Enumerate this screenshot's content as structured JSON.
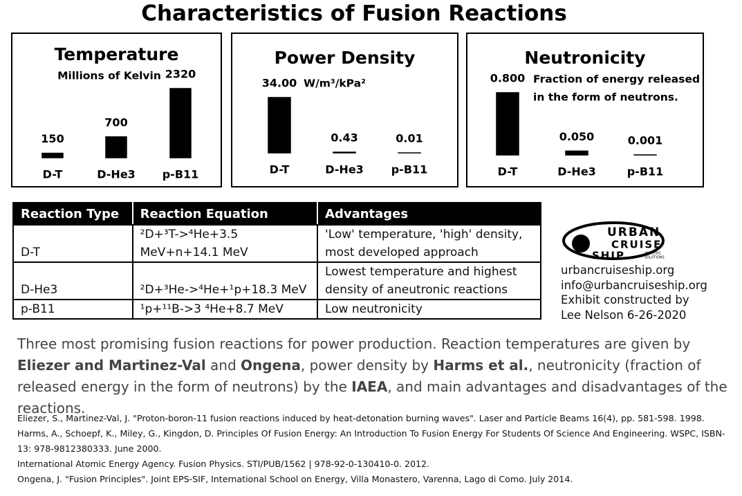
{
  "title": "Characteristics of Fusion Reactions",
  "chart_data": [
    {
      "type": "bar",
      "title": "Temperature",
      "subtitle": "Millions of Kelvin",
      "categories": [
        "D-T",
        "D-He3",
        "p-B11"
      ],
      "values": [
        150,
        700,
        2320
      ],
      "color": "#000000"
    },
    {
      "type": "bar",
      "title": "Power Density",
      "unit": "W/m³/kPa²",
      "categories": [
        "D-T",
        "D-He3",
        "p-B11"
      ],
      "values": [
        34.0,
        0.43,
        0.01
      ],
      "value_labels": [
        "34.00",
        "0.43",
        "0.01"
      ],
      "color": "#000000"
    },
    {
      "type": "bar",
      "title": "Neutronicity",
      "subtitle": [
        "Fraction of energy released",
        "in the form of neutrons."
      ],
      "categories": [
        "D-T",
        "D-He3",
        "p-B11"
      ],
      "values": [
        0.8,
        0.05,
        0.001
      ],
      "value_labels": [
        "0.800",
        "0.050",
        "0.001"
      ],
      "color": "#000000"
    }
  ],
  "table": {
    "header": [
      "Reaction Type",
      "Reaction Equation",
      "Advantages"
    ],
    "rows": [
      [
        "D-T",
        "²D+³T->⁴He+3.5 MeV+n+14.1 MeV",
        "'Low' temperature, 'high' density, most developed approach"
      ],
      [
        "D-He3",
        "²D+³He->⁴He+¹p+18.3 MeV",
        "Lowest temperature and highest density of aneutronic reactions"
      ],
      [
        "p-B11",
        "¹p+¹¹B->3 ⁴He+8.7 MeV",
        "Low neutronicity"
      ]
    ]
  },
  "logo": {
    "words": [
      "URBAN",
      "CRUISE",
      "SHIP"
    ],
    "tagline": [
      "ANALYSIS",
      "SOLUTIONS"
    ]
  },
  "contact": [
    "urbancruiseship.org",
    "info@urbancruiseship.org",
    "Exhibit constructed by",
    "Lee Nelson 6-26-2020"
  ],
  "caption": [
    {
      "text": "Three most promising fusion reactions for power production. Reaction temperatures are given by ",
      "bold": false
    },
    {
      "text": "Eliezer and Martinez-Val",
      "bold": true
    },
    {
      "text": " and ",
      "bold": false
    },
    {
      "text": "Ongena",
      "bold": true
    },
    {
      "text": ", power density by ",
      "bold": false
    },
    {
      "text": "Harms et al.",
      "bold": true
    },
    {
      "text": ", neutronicity (fraction of released energy in the form of neutrons) by the ",
      "bold": false
    },
    {
      "text": "IAEA",
      "bold": true
    },
    {
      "text": ", and main advantages and disadvantages of the reactions.",
      "bold": false
    }
  ],
  "references": [
    "Eliezer, S., Martinez-Val, J. \"Proton-boron-11 fusion reactions induced by heat-detonation burning waves\". Laser and Particle Beams 16(4), pp. 581-598. 1998.",
    "Harms, A., Schoepf, K., Miley, G., Kingdon, D. Principles Of Fusion Energy: An Introduction To Fusion Energy For Students Of Science And Engineering. WSPC, ISBN-13: 978-9812380333. June 2000.",
    "International Atomic Energy Agency. Fusion Physics. STI/PUB/1562 | 978-92-0-130410-0. 2012.",
    "Ongena, J. \"Fusion Principles\". Joint EPS-SIF, International School on Energy, Villa Monastero, Varenna, Lago di Como. July 2014."
  ]
}
